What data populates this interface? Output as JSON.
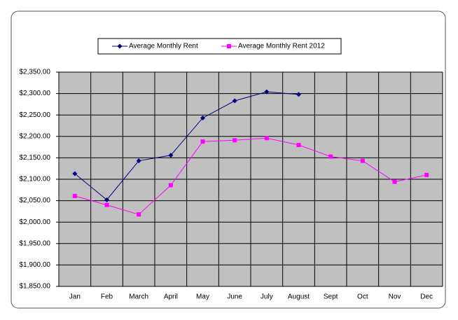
{
  "chart_data": {
    "type": "line",
    "categories": [
      "Jan",
      "Feb",
      "March",
      "April",
      "May",
      "June",
      "July",
      "August",
      "Sept",
      "Oct",
      "Nov",
      "Dec"
    ],
    "series": [
      {
        "name": "Average Monthly Rent",
        "color": "#000080",
        "marker": "diamond",
        "values": [
          2113,
          2052,
          2143,
          2156,
          2243,
          2283,
          2304,
          2298,
          null,
          null,
          null,
          null
        ]
      },
      {
        "name": "Average Monthly Rent 2012",
        "color": "#ff00ff",
        "marker": "square",
        "values": [
          2061,
          2040,
          2018,
          2086,
          2188,
          2191,
          2196,
          2180,
          2153,
          2143,
          2094,
          2110
        ]
      }
    ],
    "ylim": [
      1850,
      2350
    ],
    "yticks": [
      {
        "value": 1850,
        "label": "$1,850.00"
      },
      {
        "value": 1900,
        "label": "$1,900.00"
      },
      {
        "value": 1950,
        "label": "$1,950.00"
      },
      {
        "value": 2000,
        "label": "$2,000.00"
      },
      {
        "value": 2050,
        "label": "$2,050.00"
      },
      {
        "value": 2100,
        "label": "$2,100.00"
      },
      {
        "value": 2150,
        "label": "$2,150.00"
      },
      {
        "value": 2200,
        "label": "$2,200.00"
      },
      {
        "value": 2250,
        "label": "$2,250.00"
      },
      {
        "value": 2300,
        "label": "$2,300.00"
      },
      {
        "value": 2350,
        "label": "$2,350.00"
      }
    ],
    "grid": true,
    "legend": "top"
  }
}
